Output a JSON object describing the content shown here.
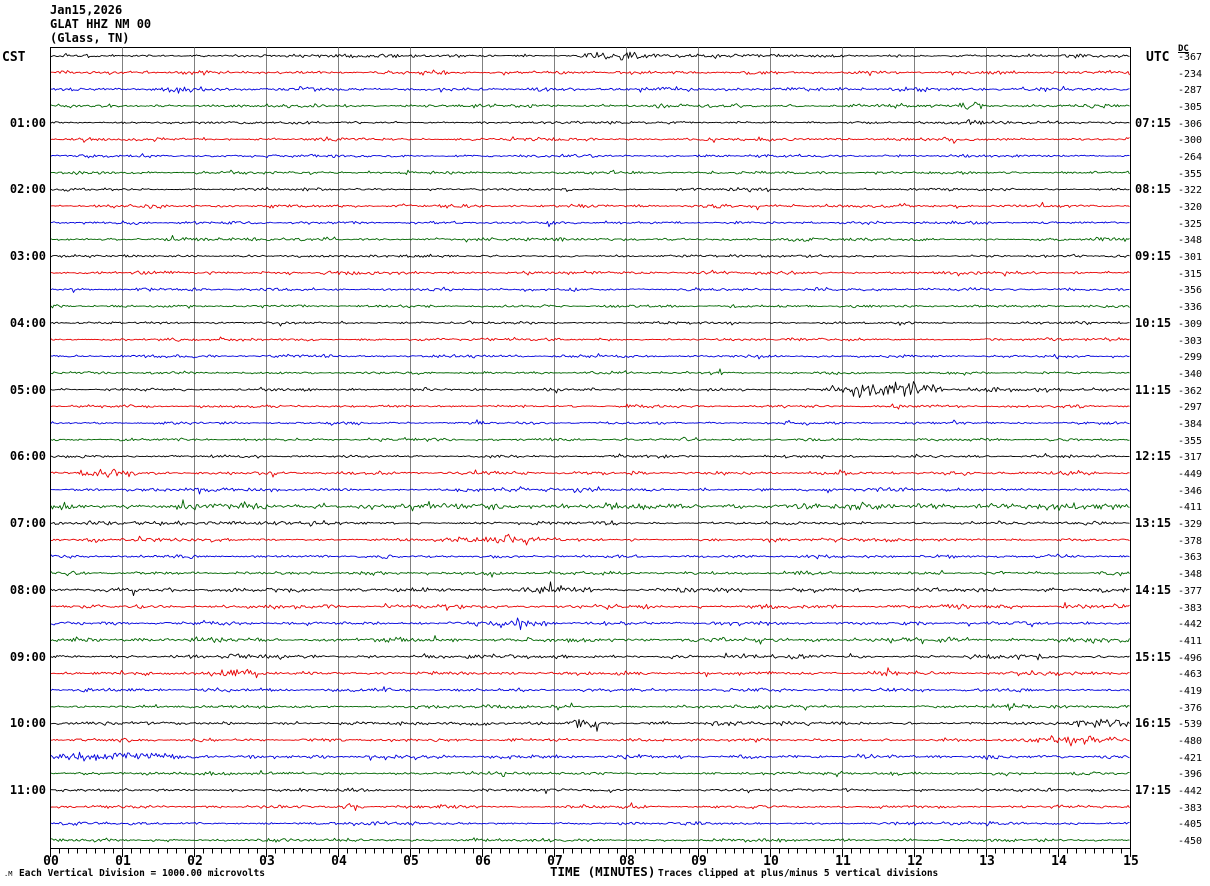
{
  "header": {
    "date": "Jan15,2026",
    "station": "GLAT HHZ NM 00",
    "location": "(Glass, TN)"
  },
  "left_axis": {
    "timezone": "CST",
    "hour_labels": [
      "01:00",
      "02:00",
      "03:00",
      "04:00",
      "05:00",
      "06:00",
      "07:00",
      "08:00",
      "09:00",
      "10:00",
      "11:00"
    ]
  },
  "right_axis": {
    "timezone": "UTC",
    "dc_header": "DC",
    "hour_labels": [
      "07:15",
      "08:15",
      "09:15",
      "10:15",
      "11:15",
      "12:15",
      "13:15",
      "14:15",
      "15:15",
      "16:15",
      "17:15"
    ]
  },
  "x_axis": {
    "title": "TIME (MINUTES)",
    "tick_labels": [
      "00",
      "01",
      "02",
      "03",
      "04",
      "05",
      "06",
      "07",
      "08",
      "09",
      "10",
      "11",
      "12",
      "13",
      "14",
      "15"
    ]
  },
  "footer": {
    "scale_note": "Each Vertical Division = 1000.00 microvolts",
    "clip_note": "Traces clipped at plus/minus 5 vertical divisions",
    "corner_mark": ".M"
  },
  "chart_data": {
    "type": "line",
    "subtype": "helicorder-seismogram",
    "title": "GLAT HHZ NM 00 (Glass, TN) Jan15,2026",
    "xlabel": "TIME (MINUTES)",
    "x_range": [
      0,
      15
    ],
    "minutes_per_line": 15,
    "lines_per_hour": 4,
    "grid": "vertical-every-minute",
    "grid_color": "#808080",
    "colors": {
      "black": "#000000",
      "red": "#e80000",
      "blue": "#0000dd",
      "green": "#006600"
    },
    "clip_divisions": 5,
    "microvolts_per_division": 1000.0,
    "rows": [
      {
        "color": "black",
        "dc": -367,
        "amp": 1.6,
        "events": [
          {
            "start": 7.3,
            "end": 8.45,
            "amp": 3.2
          }
        ]
      },
      {
        "color": "red",
        "dc": -234,
        "amp": 1.7,
        "events": []
      },
      {
        "color": "blue",
        "dc": -287,
        "amp": 1.8,
        "events": [
          {
            "start": 1.5,
            "end": 2.2,
            "amp": 1.2
          }
        ]
      },
      {
        "color": "green",
        "dc": -305,
        "amp": 1.6,
        "events": [
          {
            "start": 12.55,
            "end": 13.0,
            "amp": 2.8
          }
        ]
      },
      {
        "color": "black",
        "dc": -306,
        "amp": 1.3,
        "events": [
          {
            "start": 12.6,
            "end": 13.0,
            "amp": 2.0
          }
        ]
      },
      {
        "color": "red",
        "dc": -300,
        "amp": 1.5,
        "events": []
      },
      {
        "color": "blue",
        "dc": -264,
        "amp": 1.4,
        "events": []
      },
      {
        "color": "green",
        "dc": -355,
        "amp": 1.4,
        "events": []
      },
      {
        "color": "black",
        "dc": -322,
        "amp": 1.2,
        "events": []
      },
      {
        "color": "red",
        "dc": -320,
        "amp": 1.5,
        "events": []
      },
      {
        "color": "blue",
        "dc": -325,
        "amp": 1.4,
        "events": []
      },
      {
        "color": "green",
        "dc": -348,
        "amp": 1.5,
        "events": [
          {
            "start": 3.6,
            "end": 4.05,
            "amp": 2.2
          }
        ]
      },
      {
        "color": "black",
        "dc": -301,
        "amp": 1.3,
        "events": []
      },
      {
        "color": "red",
        "dc": -315,
        "amp": 1.6,
        "events": []
      },
      {
        "color": "blue",
        "dc": -356,
        "amp": 1.5,
        "events": []
      },
      {
        "color": "green",
        "dc": -336,
        "amp": 1.3,
        "events": []
      },
      {
        "color": "black",
        "dc": -309,
        "amp": 1.2,
        "events": []
      },
      {
        "color": "red",
        "dc": -303,
        "amp": 1.3,
        "events": []
      },
      {
        "color": "blue",
        "dc": -299,
        "amp": 1.4,
        "events": []
      },
      {
        "color": "green",
        "dc": -340,
        "amp": 1.3,
        "events": []
      },
      {
        "color": "black",
        "dc": -362,
        "amp": 1.4,
        "events": [
          {
            "start": 10.75,
            "end": 11.15,
            "amp": 2.5
          },
          {
            "start": 11.0,
            "end": 12.45,
            "amp": 6.2
          },
          {
            "start": 12.4,
            "end": 14.9,
            "amp": 1.1
          }
        ]
      },
      {
        "color": "red",
        "dc": -297,
        "amp": 1.3,
        "events": []
      },
      {
        "color": "blue",
        "dc": -384,
        "amp": 1.3,
        "events": []
      },
      {
        "color": "green",
        "dc": -355,
        "amp": 1.3,
        "events": []
      },
      {
        "color": "black",
        "dc": -317,
        "amp": 1.3,
        "events": []
      },
      {
        "color": "red",
        "dc": -449,
        "amp": 1.7,
        "events": [
          {
            "start": 0.35,
            "end": 1.25,
            "amp": 3.8
          }
        ]
      },
      {
        "color": "blue",
        "dc": -346,
        "amp": 1.7,
        "events": []
      },
      {
        "color": "green",
        "dc": -411,
        "amp": 3.0,
        "events": []
      },
      {
        "color": "black",
        "dc": -329,
        "amp": 1.5,
        "events": [
          {
            "start": 0.5,
            "end": 4.0,
            "amp": 1.0
          }
        ]
      },
      {
        "color": "red",
        "dc": -378,
        "amp": 1.6,
        "events": [
          {
            "start": 5.3,
            "end": 7.2,
            "amp": 1.3
          }
        ]
      },
      {
        "color": "blue",
        "dc": -363,
        "amp": 1.5,
        "events": []
      },
      {
        "color": "green",
        "dc": -348,
        "amp": 1.6,
        "events": []
      },
      {
        "color": "black",
        "dc": -377,
        "amp": 2.0,
        "events": [
          {
            "start": 6.4,
            "end": 7.6,
            "amp": 2.2
          }
        ]
      },
      {
        "color": "red",
        "dc": -383,
        "amp": 2.0,
        "events": []
      },
      {
        "color": "blue",
        "dc": -442,
        "amp": 1.8,
        "events": [
          {
            "start": 6.2,
            "end": 7.1,
            "amp": 1.8
          }
        ]
      },
      {
        "color": "green",
        "dc": -411,
        "amp": 2.2,
        "events": []
      },
      {
        "color": "black",
        "dc": -496,
        "amp": 1.8,
        "events": []
      },
      {
        "color": "red",
        "dc": -463,
        "amp": 1.9,
        "events": [
          {
            "start": 2.15,
            "end": 2.95,
            "amp": 3.5
          }
        ]
      },
      {
        "color": "blue",
        "dc": -419,
        "amp": 1.6,
        "events": []
      },
      {
        "color": "green",
        "dc": -376,
        "amp": 1.6,
        "events": [
          {
            "start": 13.2,
            "end": 13.7,
            "amp": 1.5
          }
        ]
      },
      {
        "color": "black",
        "dc": -539,
        "amp": 1.7,
        "events": [
          {
            "start": 7.15,
            "end": 7.65,
            "amp": 4.5
          },
          {
            "start": 14.4,
            "end": 15,
            "amp": 3.0
          }
        ]
      },
      {
        "color": "red",
        "dc": -480,
        "amp": 1.6,
        "events": [
          {
            "start": 13.3,
            "end": 15,
            "amp": 3.2
          }
        ]
      },
      {
        "color": "blue",
        "dc": -421,
        "amp": 1.9,
        "events": [
          {
            "start": 0,
            "end": 1.9,
            "amp": 3.5
          }
        ]
      },
      {
        "color": "green",
        "dc": -396,
        "amp": 1.5,
        "events": [
          {
            "start": 13.0,
            "end": 13.5,
            "amp": 1.5
          }
        ]
      },
      {
        "color": "black",
        "dc": -442,
        "amp": 1.5,
        "events": []
      },
      {
        "color": "red",
        "dc": -383,
        "amp": 1.5,
        "events": [
          {
            "start": 4.05,
            "end": 4.35,
            "amp": 3.0
          }
        ]
      },
      {
        "color": "blue",
        "dc": -405,
        "amp": 1.4,
        "events": []
      },
      {
        "color": "green",
        "dc": -450,
        "amp": 1.5,
        "events": []
      }
    ]
  }
}
